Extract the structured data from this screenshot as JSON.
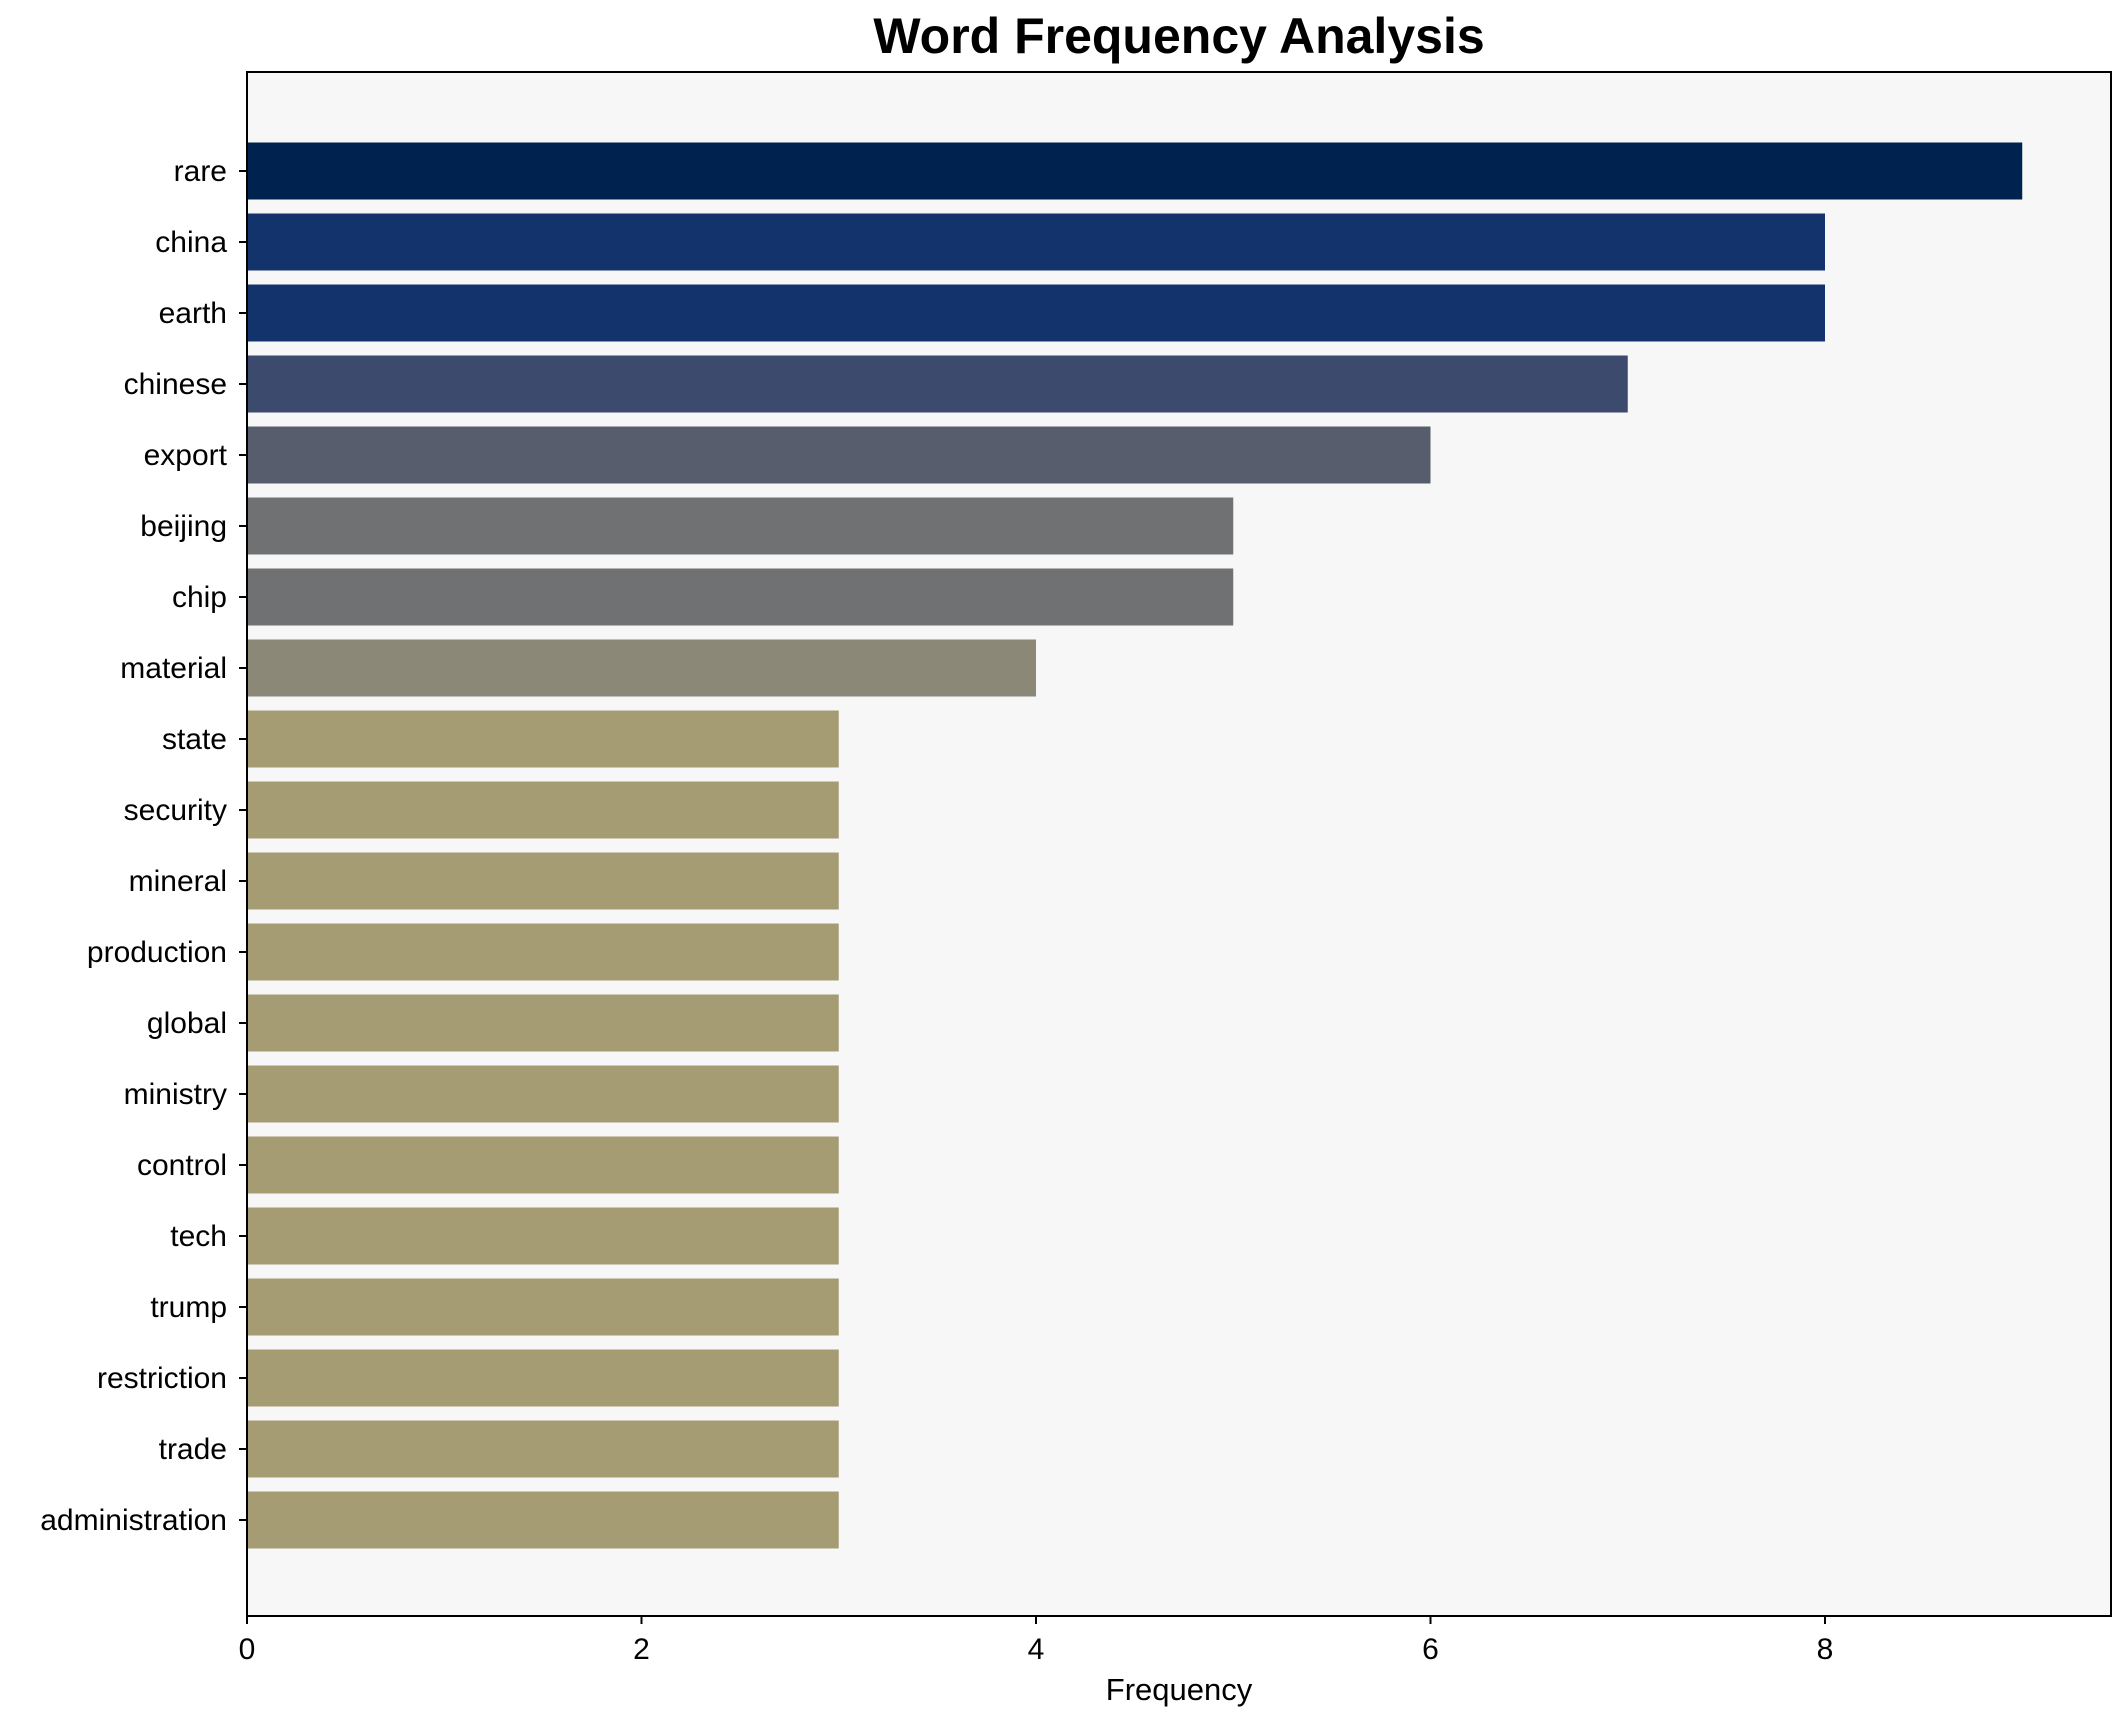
{
  "chart_data": {
    "type": "bar",
    "orientation": "horizontal",
    "title": "Word Frequency Analysis",
    "xlabel": "Frequency",
    "ylabel": "",
    "xlim": [
      0,
      9.45
    ],
    "xticks": [
      0,
      2,
      4,
      6,
      8
    ],
    "grid": false,
    "legend": "none",
    "categories": [
      "rare",
      "china",
      "earth",
      "chinese",
      "export",
      "beijing",
      "chip",
      "material",
      "state",
      "security",
      "mineral",
      "production",
      "global",
      "ministry",
      "control",
      "tech",
      "trump",
      "restriction",
      "trade",
      "administration"
    ],
    "values": [
      9,
      8,
      8,
      7,
      6,
      5,
      5,
      4,
      3,
      3,
      3,
      3,
      3,
      3,
      3,
      3,
      3,
      3,
      3,
      3
    ],
    "colors": {
      "plot_background": "#f7f7f7",
      "value_colors": {
        "9": "#00224e",
        "8": "#13336c",
        "7": "#3c4a6d",
        "6": "#575d6d",
        "5": "#707173",
        "4": "#8b8878",
        "3": "#a59c74"
      }
    }
  }
}
